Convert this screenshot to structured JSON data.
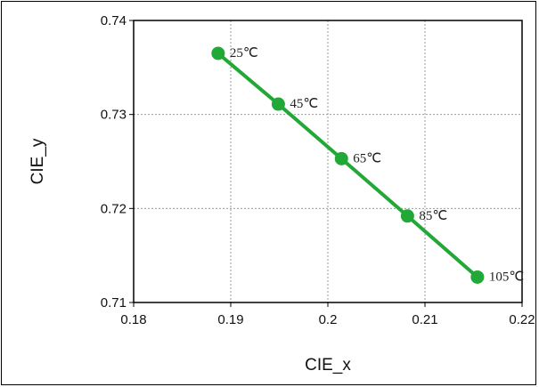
{
  "chart_data": {
    "type": "line",
    "title": "",
    "xlabel": "CIE_x",
    "ylabel": "CIE_y",
    "xlim": [
      0.18,
      0.22
    ],
    "ylim": [
      0.71,
      0.74
    ],
    "xticks": [
      "0.18",
      "0.19",
      "0.2",
      "0.21",
      "0.22"
    ],
    "yticks": [
      "0.71",
      "0.72",
      "0.73",
      "0.74"
    ],
    "grid": true,
    "series": [
      {
        "color": "#21a836",
        "points": [
          {
            "x": 0.1887,
            "y": 0.7365,
            "label": "25℃"
          },
          {
            "x": 0.1949,
            "y": 0.7311,
            "label": "45℃"
          },
          {
            "x": 0.2014,
            "y": 0.7253,
            "label": "65℃"
          },
          {
            "x": 0.2082,
            "y": 0.7192,
            "label": "85℃"
          },
          {
            "x": 0.2154,
            "y": 0.7127,
            "label": "105℃"
          }
        ]
      }
    ]
  }
}
